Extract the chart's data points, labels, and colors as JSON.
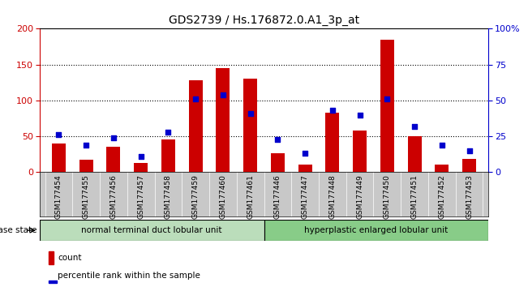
{
  "title": "GDS2739 / Hs.176872.0.A1_3p_at",
  "samples": [
    "GSM177454",
    "GSM177455",
    "GSM177456",
    "GSM177457",
    "GSM177458",
    "GSM177459",
    "GSM177460",
    "GSM177461",
    "GSM177446",
    "GSM177447",
    "GSM177448",
    "GSM177449",
    "GSM177450",
    "GSM177451",
    "GSM177452",
    "GSM177453"
  ],
  "counts": [
    40,
    17,
    36,
    13,
    46,
    128,
    145,
    130,
    27,
    11,
    83,
    58,
    185,
    50,
    11,
    19
  ],
  "percentiles": [
    26,
    19,
    24,
    11,
    28,
    51,
    54,
    41,
    23,
    13,
    43,
    40,
    51,
    32,
    19,
    15
  ],
  "group1_label": "normal terminal duct lobular unit",
  "group2_label": "hyperplastic enlarged lobular unit",
  "disease_state_label": "disease state",
  "bar_color": "#cc0000",
  "dot_color": "#0000cc",
  "group1_color": "#bbddbb",
  "group2_color": "#88cc88",
  "background_color": "#ffffff",
  "tick_bg_color": "#c8c8c8",
  "ylim_left": [
    0,
    200
  ],
  "ylim_right": [
    0,
    100
  ],
  "yticks_left": [
    0,
    50,
    100,
    150,
    200
  ],
  "ytick_labels_right": [
    "0",
    "25",
    "50",
    "75",
    "100%"
  ],
  "grid_values": [
    50,
    100,
    150
  ],
  "legend_count_label": "count",
  "legend_pct_label": "percentile rank within the sample",
  "title_fontsize": 10,
  "label_fontsize": 7.5,
  "tick_fontsize": 6.5
}
